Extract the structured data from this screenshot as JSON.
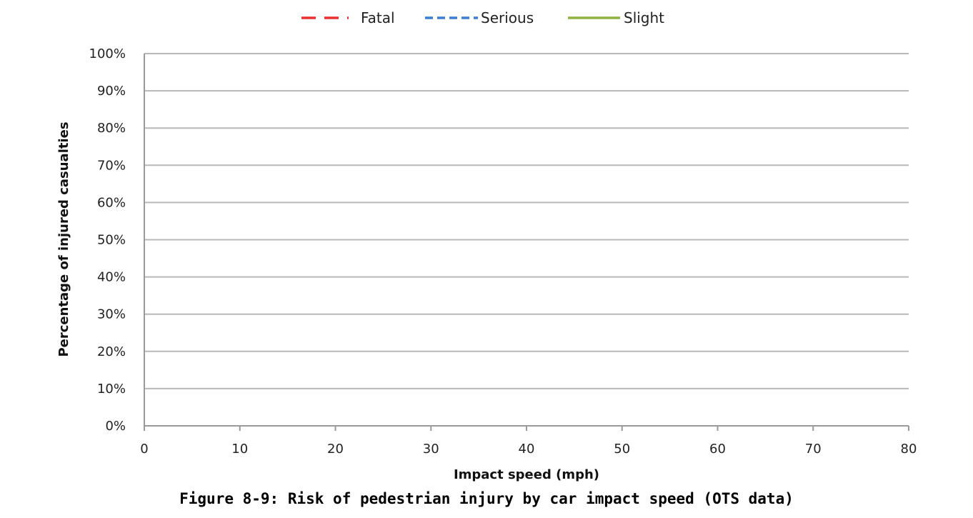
{
  "caption": "Figure 8-9: Risk of pedestrian injury by car impact speed (OTS data)",
  "chart_data": {
    "type": "line",
    "title": "",
    "xlabel": "Impact speed (mph)",
    "ylabel": "Percentage of injured casualties",
    "xlim": [
      0,
      80
    ],
    "ylim": [
      0,
      100
    ],
    "x_ticks": [
      "0",
      "10",
      "20",
      "30",
      "40",
      "50",
      "60",
      "70",
      "80"
    ],
    "y_ticks": [
      "0%",
      "10%",
      "20%",
      "30%",
      "40%",
      "50%",
      "60%",
      "70%",
      "80%",
      "90%",
      "100%"
    ],
    "grid": true,
    "legend_position": "top",
    "series": [
      {
        "name": "Fatal",
        "color": "#e8312b",
        "dash": "dashed",
        "x": [],
        "y": []
      },
      {
        "name": "Serious",
        "color": "#3b7fd4",
        "dash": "dashed",
        "x": [],
        "y": []
      },
      {
        "name": "Slight",
        "color": "#8db33f",
        "dash": "solid",
        "x": [],
        "y": []
      }
    ]
  }
}
